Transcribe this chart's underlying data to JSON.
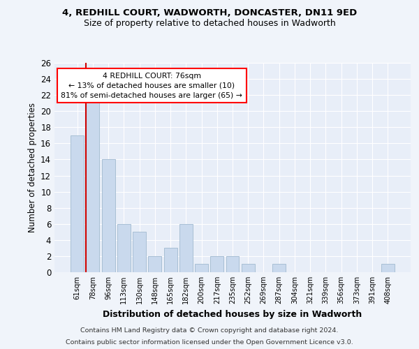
{
  "title1": "4, REDHILL COURT, WADWORTH, DONCASTER, DN11 9ED",
  "title2": "Size of property relative to detached houses in Wadworth",
  "xlabel": "Distribution of detached houses by size in Wadworth",
  "ylabel": "Number of detached properties",
  "bar_labels": [
    "61sqm",
    "78sqm",
    "96sqm",
    "113sqm",
    "130sqm",
    "148sqm",
    "165sqm",
    "182sqm",
    "200sqm",
    "217sqm",
    "235sqm",
    "252sqm",
    "269sqm",
    "287sqm",
    "304sqm",
    "321sqm",
    "339sqm",
    "356sqm",
    "373sqm",
    "391sqm",
    "408sqm"
  ],
  "bar_values": [
    17,
    22,
    14,
    6,
    5,
    2,
    3,
    6,
    1,
    2,
    2,
    1,
    0,
    1,
    0,
    0,
    0,
    0,
    0,
    0,
    1
  ],
  "bar_color": "#c9d9ed",
  "bar_edge_color": "#a8bfd4",
  "highlight_color": "#cc0000",
  "ylim": [
    0,
    26
  ],
  "yticks": [
    0,
    2,
    4,
    6,
    8,
    10,
    12,
    14,
    16,
    18,
    20,
    22,
    24,
    26
  ],
  "annotation_title": "4 REDHILL COURT: 76sqm",
  "annotation_line1": "← 13% of detached houses are smaller (10)",
  "annotation_line2": "81% of semi-detached houses are larger (65) →",
  "footer1": "Contains HM Land Registry data © Crown copyright and database right 2024.",
  "footer2": "Contains public sector information licensed under the Open Government Licence v3.0.",
  "bg_color": "#f0f4fa",
  "plot_bg_color": "#e8eef8"
}
